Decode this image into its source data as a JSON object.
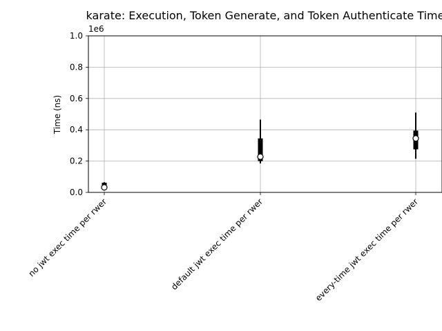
{
  "chart_data": {
    "type": "box",
    "title": "karate: Execution, Token Generate, and Token Authenticate Time",
    "xlabel": "",
    "ylabel": "Time (ns)",
    "y_multiplier_label": "1e6",
    "ylim": [
      0,
      1000000
    ],
    "yticks": [
      0,
      200000,
      400000,
      600000,
      800000,
      1000000
    ],
    "ytick_labels": [
      "0.0",
      "0.2",
      "0.4",
      "0.6",
      "0.8",
      "1.0"
    ],
    "grid": true,
    "categories": [
      "no jwt exec time per rwer",
      "default jwt exec time per rwer",
      "every-time jwt exec time per rwer"
    ],
    "series": [
      {
        "values": [
          {
            "whisker_low": 20000,
            "q1": 25000,
            "median": 32000,
            "q3": 62000,
            "whisker_high": 65000
          },
          {
            "whisker_low": 185000,
            "q1": 200000,
            "median": 228000,
            "q3": 345000,
            "whisker_high": 465000
          },
          {
            "whisker_low": 215000,
            "q1": 275000,
            "median": 345000,
            "q3": 395000,
            "whisker_high": 510000
          }
        ]
      }
    ]
  }
}
